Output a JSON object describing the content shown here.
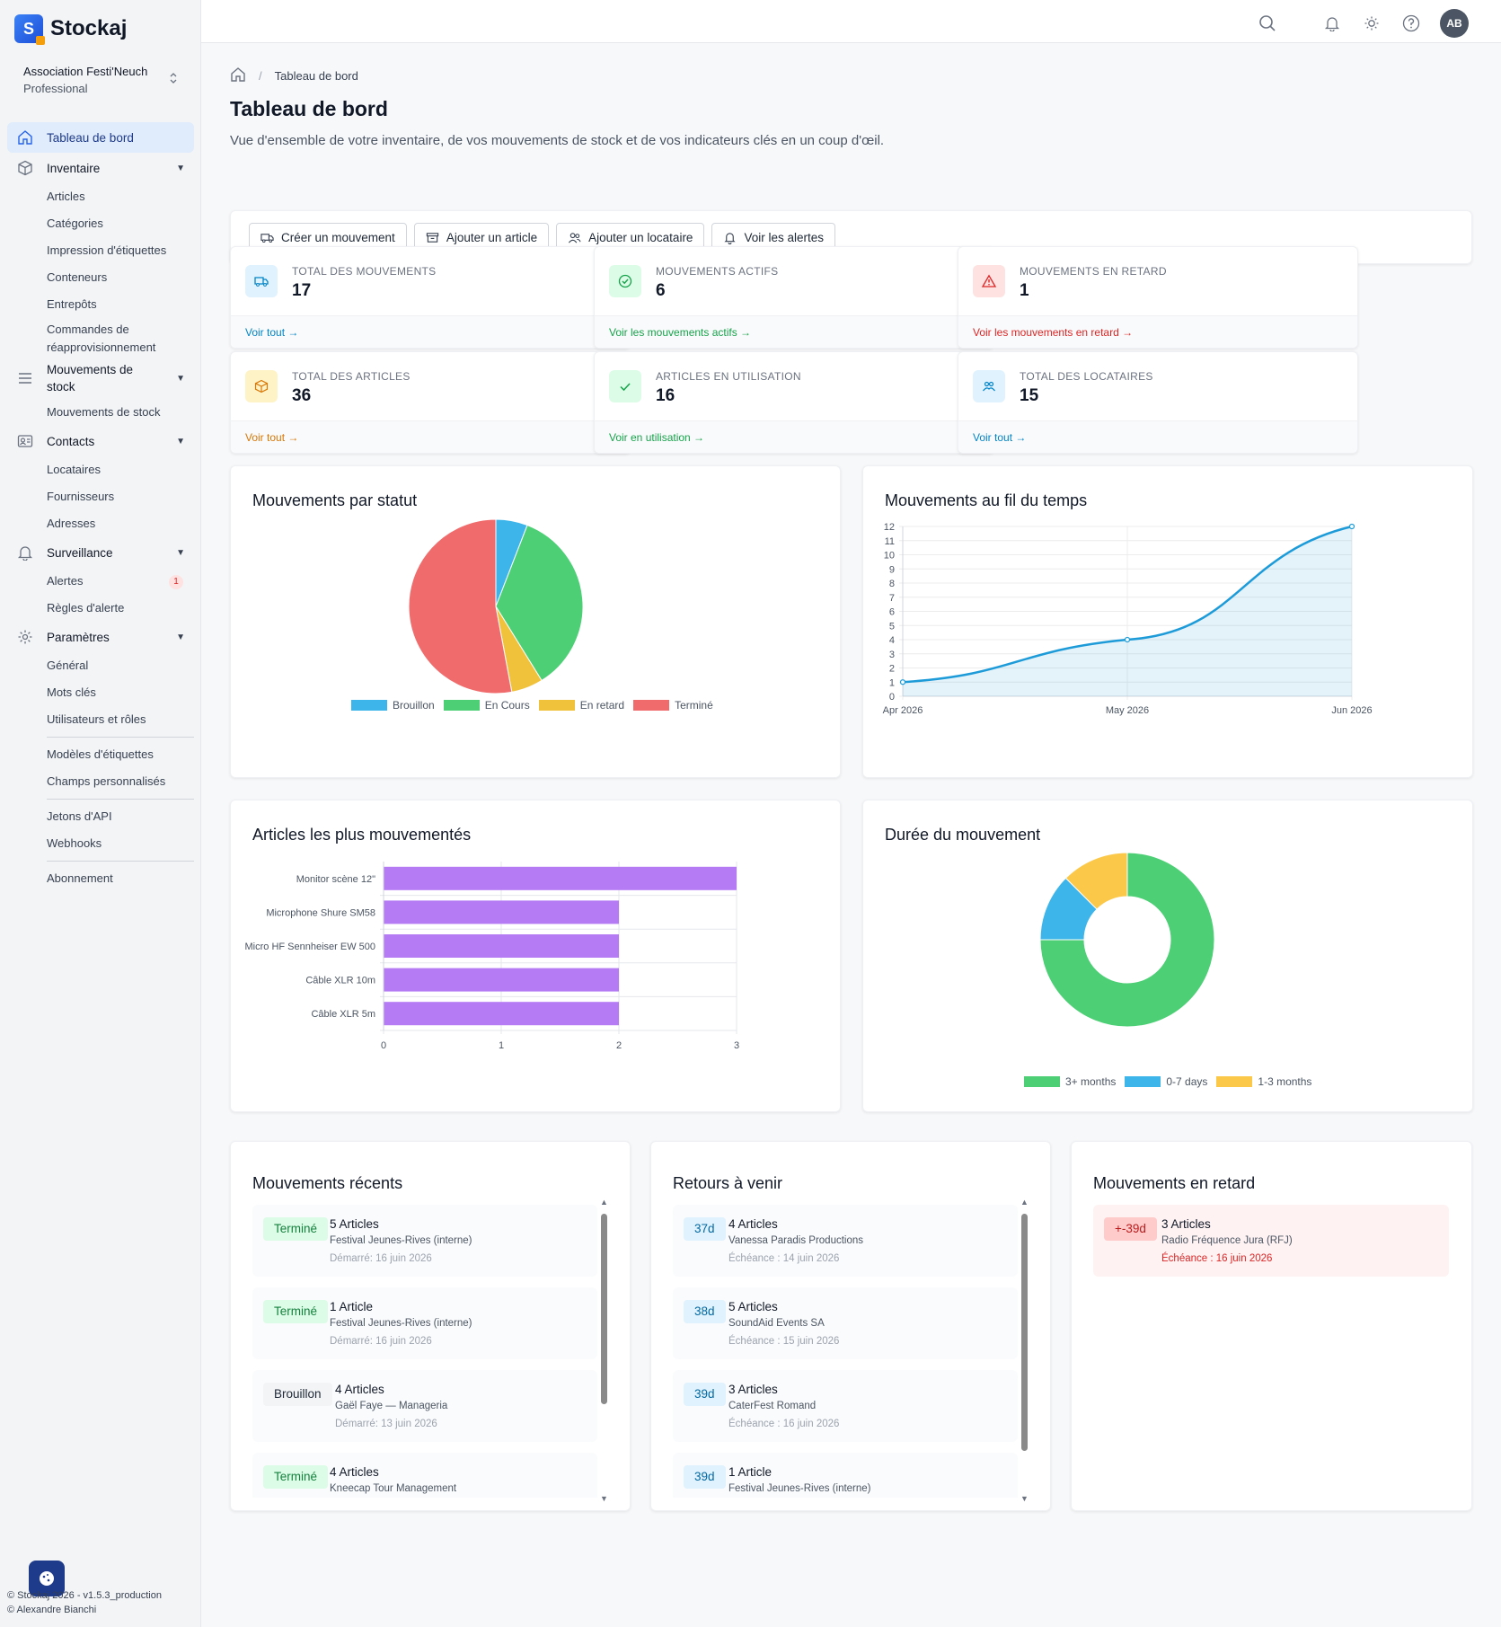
{
  "app": {
    "name": "Stockaj"
  },
  "org": {
    "name": "Association Festi'Neuch",
    "plan": "Professional"
  },
  "sidebar": {
    "dashboard": "Tableau de bord",
    "inventory": {
      "label": "Inventaire",
      "items": [
        "Articles",
        "Catégories",
        "Impression d'étiquettes",
        "Conteneurs",
        "Entrepôts",
        "Commandes de réapprovisionnement"
      ]
    },
    "movements": {
      "label": "Mouvements de stock",
      "items": [
        "Mouvements de stock"
      ]
    },
    "contacts": {
      "label": "Contacts",
      "items": [
        "Locataires",
        "Fournisseurs",
        "Adresses"
      ]
    },
    "monitoring": {
      "label": "Surveillance",
      "items": [
        "Alertes",
        "Règles d'alerte"
      ],
      "alerts_count": "1"
    },
    "settings": {
      "label": "Paramètres",
      "items": [
        "Général",
        "Mots clés",
        "Utilisateurs et rôles"
      ]
    },
    "extra1": [
      "Modèles d'étiquettes",
      "Champs personnalisés"
    ],
    "extra2": [
      "Jetons d'API",
      "Webhooks"
    ],
    "extra3": [
      "Abonnement"
    ]
  },
  "footer": {
    "line1": "© Stockaj 2026 - v1.5.3_production",
    "line2": "© Alexandre Bianchi"
  },
  "user": {
    "initials": "AB"
  },
  "breadcrumb": {
    "current": "Tableau de bord"
  },
  "page": {
    "title": "Tableau de bord",
    "subtitle": "Vue d'ensemble de votre inventaire, de vos mouvements de stock et de vos indicateurs clés en un coup d'œil."
  },
  "actions": [
    "Créer un mouvement",
    "Ajouter un article",
    "Ajouter un locataire",
    "Voir les alertes"
  ],
  "stats": [
    {
      "label": "TOTAL DES MOUVEMENTS",
      "value": "17",
      "link": "Voir tout →",
      "color": "#0284c7",
      "bg": "#e0f2fe"
    },
    {
      "label": "MOUVEMENTS ACTIFS",
      "value": "6",
      "link": "Voir les mouvements actifs →",
      "color": "#16a34a",
      "bg": "#dcfce7"
    },
    {
      "label": "MOUVEMENTS EN RETARD",
      "value": "1",
      "link": "Voir les mouvements en retard →",
      "color": "#dc2626",
      "bg": "#fee2e2"
    },
    {
      "label": "TOTAL DES ARTICLES",
      "value": "36",
      "link": "Voir tout →",
      "color": "#d97706",
      "bg": "#fef3c7"
    },
    {
      "label": "ARTICLES EN UTILISATION",
      "value": "16",
      "link": "Voir en utilisation →",
      "color": "#16a34a",
      "bg": "#dcfce7"
    },
    {
      "label": "TOTAL DES LOCATAIRES",
      "value": "15",
      "link": "Voir tout →",
      "color": "#0284c7",
      "bg": "#e0f2fe"
    }
  ],
  "chart_data": [
    {
      "type": "pie",
      "title": "Mouvements par statut",
      "categories": [
        "Brouillon",
        "En Cours",
        "En retard",
        "Terminé"
      ],
      "values": [
        1,
        6,
        1,
        9
      ],
      "colors": [
        "#3db5ea",
        "#4ccf75",
        "#f0c23b",
        "#f06b6b"
      ],
      "legend": "bottom"
    },
    {
      "type": "area",
      "title": "Mouvements au fil du temps",
      "x": [
        "Apr 2026",
        "May 2026",
        "Jun 2026"
      ],
      "series": [
        {
          "values": [
            1,
            4,
            12
          ]
        }
      ],
      "ylim": [
        0,
        12
      ],
      "yticks": [
        "0",
        "1",
        "2",
        "3",
        "4",
        "5",
        "6",
        "7",
        "8",
        "9",
        "10",
        "11",
        "12"
      ],
      "color": "#1d9bd9",
      "grid": true
    },
    {
      "type": "bar",
      "orientation": "horizontal",
      "title": "Articles les plus mouvementés",
      "categories": [
        "Monitor scène 12\"",
        "Microphone Shure SM58",
        "Micro HF Sennheiser EW 500",
        "Câble XLR 10m",
        "Câble XLR 5m"
      ],
      "values": [
        3,
        2,
        2,
        2,
        2
      ],
      "xlim": [
        0,
        3
      ],
      "xticks": [
        "0",
        "1",
        "2",
        "3"
      ],
      "color": "#b57bf5"
    },
    {
      "type": "pie",
      "donut": true,
      "title": "Durée du mouvement",
      "categories": [
        "3+ months",
        "0-7 days",
        "1-3 months"
      ],
      "values": [
        12,
        2,
        2
      ],
      "colors": [
        "#4ccf75",
        "#3db5ea",
        "#fbc84a"
      ],
      "legend": "bottom"
    }
  ],
  "recent": {
    "title": "Mouvements récents",
    "items": [
      {
        "badge": "Terminé",
        "title": "5 Articles",
        "sub": "Festival Jeunes-Rives (interne)",
        "date": "Démarré: 16 juin 2026"
      },
      {
        "badge": "Terminé",
        "title": "1 Article",
        "sub": "Festival Jeunes-Rives (interne)",
        "date": "Démarré: 16 juin 2026"
      },
      {
        "badge": "Brouillon",
        "title": "4 Articles",
        "sub": "Gaël Faye — Manageria",
        "date": "Démarré: 13 juin 2026"
      },
      {
        "badge": "Terminé",
        "title": "4 Articles",
        "sub": "Kneecap Tour Management",
        "date": ""
      }
    ]
  },
  "returns": {
    "title": "Retours à venir",
    "items": [
      {
        "badge": "37d",
        "title": "4 Articles",
        "sub": "Vanessa Paradis Productions",
        "date": "Échéance : 14 juin 2026"
      },
      {
        "badge": "38d",
        "title": "5 Articles",
        "sub": "SoundAid Events SA",
        "date": "Échéance : 15 juin 2026"
      },
      {
        "badge": "39d",
        "title": "3 Articles",
        "sub": "CaterFest Romand",
        "date": "Échéance : 16 juin 2026"
      },
      {
        "badge": "39d",
        "title": "1 Article",
        "sub": "Festival Jeunes-Rives (interne)",
        "date": ""
      }
    ]
  },
  "overdue": {
    "title": "Mouvements en retard",
    "items": [
      {
        "badge": "+-39d",
        "title": "3 Articles",
        "sub": "Radio Fréquence Jura (RFJ)",
        "date": "Échéance : 16 juin 2026"
      }
    ]
  }
}
